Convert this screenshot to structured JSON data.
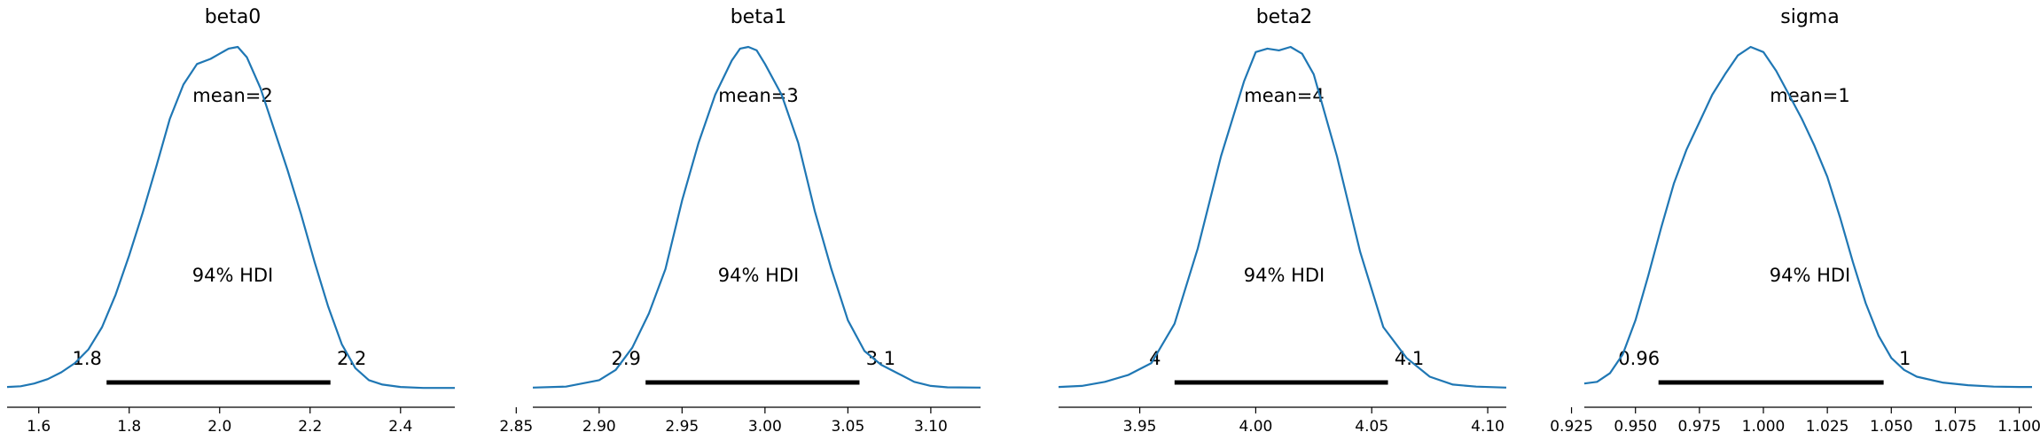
{
  "colors": {
    "kde": "#1f77b4",
    "hdi_bar": "#000000",
    "text": "#000000",
    "axis": "#000000"
  },
  "chart_data": [
    {
      "type": "line",
      "title": "beta0",
      "xlim": [
        1.53,
        2.52
      ],
      "xticks": [
        "1.6",
        "1.8",
        "2.0",
        "2.2",
        "2.4"
      ],
      "xtick_values": [
        1.6,
        1.8,
        2.0,
        2.2,
        2.4
      ],
      "mean_label": "mean=2",
      "hdi_label": "94% HDI",
      "hdi": [
        1.75,
        2.245
      ],
      "hdi_labels": [
        "1.8",
        "2.2"
      ],
      "x": [
        1.53,
        1.56,
        1.59,
        1.62,
        1.65,
        1.68,
        1.71,
        1.74,
        1.77,
        1.8,
        1.83,
        1.86,
        1.89,
        1.92,
        1.95,
        1.98,
        2.0,
        2.02,
        2.04,
        2.06,
        2.09,
        2.12,
        2.15,
        2.18,
        2.21,
        2.24,
        2.27,
        2.3,
        2.33,
        2.36,
        2.4,
        2.45,
        2.5,
        2.52
      ],
      "density": [
        0.005,
        0.007,
        0.015,
        0.028,
        0.048,
        0.075,
        0.115,
        0.18,
        0.275,
        0.39,
        0.515,
        0.65,
        0.79,
        0.89,
        0.95,
        0.965,
        0.98,
        0.995,
        1.0,
        0.97,
        0.88,
        0.76,
        0.64,
        0.51,
        0.37,
        0.24,
        0.13,
        0.06,
        0.025,
        0.012,
        0.005,
        0.002,
        0.002,
        0.002
      ]
    },
    {
      "type": "line",
      "title": "beta1",
      "xlim": [
        2.86,
        3.13
      ],
      "xticks": [
        "2.85",
        "2.90",
        "2.95",
        "3.00",
        "3.05",
        "3.10"
      ],
      "xtick_values": [
        2.85,
        2.9,
        2.95,
        3.0,
        3.05,
        3.1
      ],
      "mean_label": "mean=3",
      "hdi_label": "94% HDI",
      "hdi": [
        2.928,
        3.057
      ],
      "hdi_labels": [
        "2.9",
        "3.1"
      ],
      "x": [
        2.86,
        2.88,
        2.9,
        2.91,
        2.92,
        2.93,
        2.94,
        2.95,
        2.96,
        2.97,
        2.98,
        2.985,
        2.99,
        2.995,
        3.0,
        3.01,
        3.02,
        3.03,
        3.04,
        3.05,
        3.06,
        3.07,
        3.08,
        3.09,
        3.1,
        3.11,
        3.13
      ],
      "density": [
        0.003,
        0.006,
        0.025,
        0.055,
        0.12,
        0.22,
        0.35,
        0.55,
        0.72,
        0.86,
        0.96,
        0.995,
        1.0,
        0.99,
        0.95,
        0.86,
        0.72,
        0.52,
        0.35,
        0.2,
        0.11,
        0.07,
        0.045,
        0.02,
        0.008,
        0.004,
        0.003
      ]
    },
    {
      "type": "line",
      "title": "beta2",
      "xlim": [
        3.915,
        4.108
      ],
      "xticks": [
        "3.95",
        "4.00",
        "4.05",
        "4.10"
      ],
      "xtick_values": [
        3.95,
        4.0,
        4.05,
        4.1
      ],
      "mean_label": "mean=4",
      "hdi_label": "94% HDI",
      "hdi": [
        3.965,
        4.057
      ],
      "hdi_labels": [
        "4",
        "4.1"
      ],
      "x": [
        3.915,
        3.925,
        3.935,
        3.945,
        3.955,
        3.965,
        3.975,
        3.985,
        3.995,
        4.0,
        4.005,
        4.01,
        4.015,
        4.02,
        4.025,
        4.035,
        4.045,
        4.055,
        4.065,
        4.075,
        4.085,
        4.095,
        4.108
      ],
      "density": [
        0.005,
        0.008,
        0.02,
        0.04,
        0.075,
        0.19,
        0.41,
        0.68,
        0.9,
        0.985,
        0.995,
        0.99,
        1.0,
        0.98,
        0.92,
        0.68,
        0.4,
        0.18,
        0.09,
        0.035,
        0.012,
        0.006,
        0.003
      ]
    },
    {
      "type": "line",
      "title": "sigma",
      "xlim": [
        0.93,
        1.105
      ],
      "xticks": [
        "0.925",
        "0.950",
        "0.975",
        "1.000",
        "1.025",
        "1.050",
        "1.075",
        "1.100"
      ],
      "xtick_values": [
        0.925,
        0.95,
        0.975,
        1.0,
        1.025,
        1.05,
        1.075,
        1.1
      ],
      "mean_label": "mean=1",
      "hdi_label": "94% HDI",
      "hdi": [
        0.959,
        1.047
      ],
      "hdi_labels": [
        "0.96",
        "1"
      ],
      "x": [
        0.93,
        0.935,
        0.94,
        0.945,
        0.95,
        0.955,
        0.96,
        0.965,
        0.97,
        0.975,
        0.98,
        0.985,
        0.99,
        0.995,
        1.0,
        1.005,
        1.01,
        1.015,
        1.02,
        1.025,
        1.03,
        1.035,
        1.04,
        1.045,
        1.05,
        1.055,
        1.06,
        1.07,
        1.08,
        1.09,
        1.1,
        1.105
      ],
      "density": [
        0.015,
        0.02,
        0.045,
        0.1,
        0.2,
        0.33,
        0.47,
        0.6,
        0.7,
        0.78,
        0.86,
        0.92,
        0.975,
        1.0,
        0.985,
        0.93,
        0.86,
        0.79,
        0.71,
        0.62,
        0.5,
        0.37,
        0.25,
        0.155,
        0.09,
        0.055,
        0.035,
        0.018,
        0.01,
        0.006,
        0.005,
        0.005
      ]
    }
  ]
}
